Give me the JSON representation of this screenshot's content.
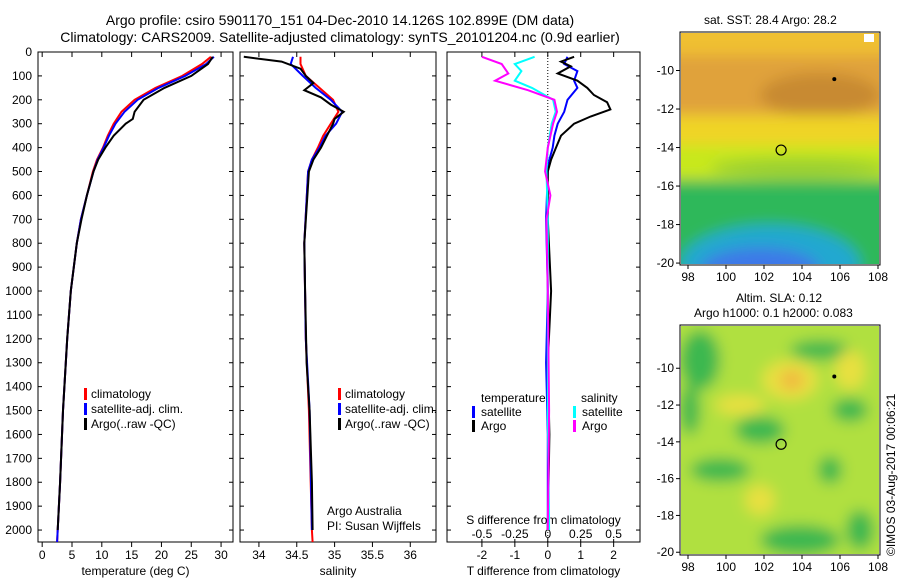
{
  "title": {
    "line1": "Argo profile: csiro 5901170_151 04-Dec-2010 14.126S 102.899E (DM data)",
    "line2": "Climatology: CARS2009. Satellite-adjusted climatology: synTS_20101204.nc (0.9d earlier)"
  },
  "credit": "©IMOS 03-Aug-2017 00:06:21",
  "colors": {
    "climatology": "#ff0000",
    "satellite": "#0000ff",
    "argo": "#000000",
    "salinity_satellite": "#00ffff",
    "salinity_argo": "#ff00ff"
  },
  "chart_data": [
    {
      "type": "line",
      "id": "temperature",
      "xlabel": "temperature (deg C)",
      "ylabel": "",
      "xlim": [
        -0.7,
        32
      ],
      "ylim": [
        2050,
        0
      ],
      "xticks": [
        0,
        5,
        10,
        15,
        20,
        25,
        30
      ],
      "yticks": [
        0,
        100,
        200,
        300,
        400,
        500,
        600,
        700,
        800,
        900,
        1000,
        1100,
        1200,
        1300,
        1400,
        1500,
        1600,
        1700,
        1800,
        1900,
        2000
      ],
      "legend": [
        "climatology",
        "satellite-adj. clim.",
        "Argo(..raw -QC)"
      ],
      "series": [
        {
          "name": "climatology",
          "color": "#ff0000",
          "depth": [
            20,
            50,
            100,
            150,
            200,
            250,
            300,
            350,
            400,
            450,
            500,
            600,
            700,
            800,
            1000,
            1200,
            1500,
            1800,
            2000,
            2050
          ],
          "values": [
            28.3,
            26.8,
            23.5,
            19,
            15.5,
            13.3,
            12,
            11,
            10.2,
            9.2,
            8.5,
            7.5,
            6.5,
            5.8,
            4.8,
            4.2,
            3.5,
            3.0,
            2.6,
            2.5
          ]
        },
        {
          "name": "satellite-adj. clim.",
          "color": "#0000ff",
          "depth": [
            20,
            50,
            100,
            150,
            200,
            250,
            300,
            350,
            400,
            450,
            500,
            600,
            700,
            800,
            1000,
            1200,
            1500,
            1800,
            2000,
            2050
          ],
          "values": [
            28.8,
            27.5,
            24,
            19.5,
            16,
            13.8,
            12.3,
            11.2,
            10.3,
            9.3,
            8.6,
            7.5,
            6.5,
            5.8,
            4.8,
            4.2,
            3.5,
            3.0,
            2.6,
            2.5
          ]
        },
        {
          "name": "Argo(..raw -QC)",
          "color": "#000000",
          "depth": [
            20,
            50,
            100,
            150,
            200,
            250,
            280,
            300,
            350,
            400,
            450,
            500,
            600,
            700,
            800,
            1000,
            1200,
            1500,
            1800,
            2000
          ],
          "values": [
            28.6,
            27.8,
            25,
            20.5,
            17,
            15.5,
            15.2,
            14,
            12,
            10.6,
            9.4,
            8.6,
            7.5,
            6.6,
            5.8,
            4.8,
            4.2,
            3.5,
            3.0,
            2.6
          ]
        }
      ]
    },
    {
      "type": "line",
      "id": "salinity",
      "xlabel": "salinity",
      "xlim": [
        33.75,
        36.34
      ],
      "ylim": [
        2050,
        0
      ],
      "xticks": [
        34,
        34.5,
        35,
        35.5,
        36
      ],
      "legend": [
        "climatology",
        "satellite-adj. clim.",
        "Argo(..raw -QC)"
      ],
      "annotation": [
        "Argo Australia",
        "PI: Susan Wijffels"
      ],
      "series": [
        {
          "name": "climatology",
          "color": "#ff0000",
          "depth": [
            20,
            50,
            100,
            150,
            200,
            250,
            300,
            350,
            400,
            450,
            500,
            800,
            1200,
            1500,
            2000,
            2050
          ],
          "values": [
            34.55,
            34.55,
            34.62,
            34.8,
            34.98,
            35.05,
            34.95,
            34.85,
            34.78,
            34.7,
            34.65,
            34.6,
            34.62,
            34.66,
            34.7,
            34.71
          ]
        },
        {
          "name": "satellite-adj. clim.",
          "color": "#0000ff",
          "depth": [
            20,
            50,
            100,
            150,
            200,
            250,
            300,
            350,
            400,
            450,
            500,
            800,
            1200,
            1500,
            2000
          ],
          "values": [
            34.45,
            34.42,
            34.58,
            34.75,
            34.95,
            35.1,
            35.02,
            34.88,
            34.8,
            34.7,
            34.65,
            34.6,
            34.62,
            34.67,
            34.7
          ]
        },
        {
          "name": "Argo(..raw -QC)",
          "color": "#000000",
          "depth": [
            20,
            40,
            70,
            100,
            130,
            160,
            190,
            220,
            250,
            280,
            300,
            350,
            400,
            450,
            500,
            600,
            800,
            1000,
            1300,
            1500,
            1800,
            2000
          ],
          "values": [
            33.8,
            34.3,
            34.55,
            34.62,
            34.72,
            34.6,
            34.82,
            34.95,
            35.12,
            35.0,
            34.98,
            34.9,
            34.82,
            34.72,
            34.66,
            34.64,
            34.6,
            34.61,
            34.63,
            34.67,
            34.7,
            34.71
          ]
        }
      ]
    },
    {
      "type": "line",
      "id": "difference",
      "xlabel": "T difference from climatology",
      "x2label": "S difference from climatology",
      "xlim": [
        -3.06,
        2.8
      ],
      "ylim": [
        2050,
        0
      ],
      "xticks": [
        -2,
        -1,
        0,
        1,
        2
      ],
      "x2ticks": [
        "-0.5",
        "-0.25",
        "0",
        "0.25",
        "0.5"
      ],
      "x2_scale_note": "S axis = T axis / 4",
      "legend_temperature": {
        "heading": "temperature",
        "items": [
          "satellite",
          "Argo"
        ]
      },
      "legend_salinity": {
        "heading": "salinity",
        "items": [
          "satellite",
          "Argo"
        ]
      },
      "series": [
        {
          "name": "temperature satellite",
          "color": "#0000ff",
          "depth": [
            20,
            50,
            80,
            120,
            150,
            200,
            250,
            300,
            350,
            400,
            450,
            500,
            700,
            1000,
            1300,
            1600,
            2000
          ],
          "values": [
            0.6,
            0.5,
            0.9,
            0.8,
            0.9,
            0.6,
            0.5,
            0.3,
            0.2,
            0.15,
            0.05,
            0.0,
            -0.05,
            0.0,
            -0.05,
            0.0,
            0.0
          ]
        },
        {
          "name": "temperature Argo",
          "color": "#000000",
          "depth": [
            20,
            40,
            60,
            90,
            120,
            150,
            180,
            210,
            240,
            270,
            300,
            350,
            400,
            450,
            500,
            700,
            1000,
            1300,
            1600,
            2000
          ],
          "values": [
            0.8,
            0.4,
            0.7,
            0.3,
            0.9,
            1.2,
            1.4,
            1.8,
            1.9,
            1.3,
            0.8,
            0.4,
            0.25,
            0.1,
            0.0,
            0.0,
            0.1,
            0.0,
            0.05,
            0.0
          ]
        },
        {
          "name": "salinity satellite",
          "color": "#00ffff",
          "depth": [
            20,
            50,
            80,
            120,
            150,
            200,
            250,
            300,
            400,
            500,
            700,
            1000,
            1500,
            2000
          ],
          "values": [
            -0.1,
            -0.25,
            -0.2,
            -0.25,
            -0.12,
            0.04,
            0.06,
            0.03,
            0.0,
            -0.01,
            0.0,
            0.0,
            0.0,
            0.01
          ]
        },
        {
          "name": "salinity Argo",
          "color": "#ff00ff",
          "depth": [
            20,
            50,
            90,
            120,
            160,
            200,
            250,
            300,
            400,
            500,
            600,
            700,
            1000,
            1500,
            2000
          ],
          "values": [
            -0.5,
            -0.35,
            -0.3,
            -0.4,
            -0.15,
            0.05,
            0.07,
            0.04,
            0.0,
            -0.02,
            0.02,
            -0.01,
            0.0,
            0.01,
            0.0
          ]
        }
      ]
    }
  ],
  "maps": [
    {
      "id": "sst",
      "label": "sat. SST: 28.4  Argo: 28.2",
      "lon_ticks": [
        "98",
        "100",
        "102",
        "104",
        "106",
        "108"
      ],
      "lat_ticks": [
        "-10",
        "-12",
        "-14",
        "-16",
        "-18",
        "-20"
      ],
      "profile_lon": 102.9,
      "profile_lat": -14.13
    },
    {
      "id": "sla",
      "label_line1": "Altim. SLA: 0.12",
      "label_line2": "Argo h1000: 0.1 h2000: 0.083",
      "lon_ticks": [
        "98",
        "100",
        "102",
        "104",
        "106",
        "108"
      ],
      "lat_ticks": [
        "-10",
        "-12",
        "-14",
        "-16",
        "-18",
        "-20"
      ],
      "profile_lon": 102.9,
      "profile_lat": -14.13
    }
  ]
}
